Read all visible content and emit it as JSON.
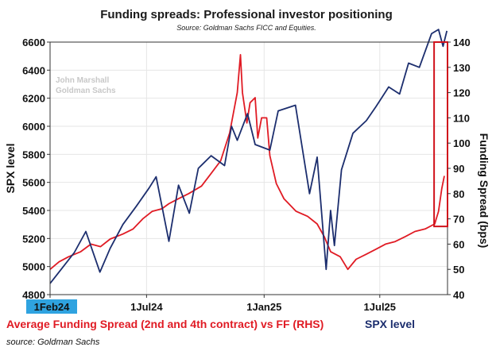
{
  "chart_data": {
    "type": "line",
    "title": "Funding spreads: Professional investor positioning",
    "subtitle": "Source: Goldman Sachs FICC and Equities.",
    "watermark": [
      "John Marshall",
      "Goldman Sachs"
    ],
    "ylabel_left": "SPX level",
    "ylabel_right": "Funding Spread (bps)",
    "ylim_left": [
      4800,
      6600
    ],
    "ylim_right": [
      40,
      140
    ],
    "yticks_left": [
      4800,
      5000,
      5200,
      5400,
      5600,
      5800,
      6000,
      6200,
      6400,
      6600
    ],
    "yticks_right": [
      40,
      50,
      60,
      70,
      80,
      90,
      100,
      110,
      120,
      130,
      140
    ],
    "xlim": [
      "2024-02-01",
      "2025-10-15"
    ],
    "xticks": [
      {
        "label": "1Feb24",
        "date": "2024-02-01",
        "highlight": true
      },
      {
        "label": "1Jul24",
        "date": "2024-07-01"
      },
      {
        "label": "1Jan25",
        "date": "2025-01-01"
      },
      {
        "label": "1Jul25",
        "date": "2025-07-01"
      }
    ],
    "grid": true,
    "colors": {
      "spx": "#1c2e6e",
      "spread": "#e01b24",
      "grid": "#e6e6e6",
      "highlight_box": "#d0121b",
      "start_label_bg": "#2fa3e0"
    },
    "series": [
      {
        "name": "Average Funding Spread (2nd and 4th contract) vs FF (RHS)",
        "axis": "right",
        "points": [
          [
            "2024-02-01",
            50
          ],
          [
            "2024-02-15",
            53
          ],
          [
            "2024-03-01",
            55
          ],
          [
            "2024-03-20",
            57
          ],
          [
            "2024-04-05",
            60
          ],
          [
            "2024-04-20",
            59
          ],
          [
            "2024-05-05",
            62
          ],
          [
            "2024-05-25",
            64
          ],
          [
            "2024-06-10",
            66
          ],
          [
            "2024-06-25",
            70
          ],
          [
            "2024-07-10",
            73
          ],
          [
            "2024-07-25",
            74
          ],
          [
            "2024-08-05",
            76
          ],
          [
            "2024-08-20",
            78
          ],
          [
            "2024-09-05",
            80
          ],
          [
            "2024-09-25",
            83
          ],
          [
            "2024-10-10",
            88
          ],
          [
            "2024-10-25",
            93
          ],
          [
            "2024-11-08",
            104
          ],
          [
            "2024-11-20",
            120
          ],
          [
            "2024-11-25",
            135
          ],
          [
            "2024-11-28",
            120
          ],
          [
            "2024-12-05",
            108
          ],
          [
            "2024-12-10",
            116
          ],
          [
            "2024-12-18",
            118
          ],
          [
            "2024-12-22",
            102
          ],
          [
            "2024-12-28",
            110
          ],
          [
            "2025-01-05",
            110
          ],
          [
            "2025-01-10",
            95
          ],
          [
            "2025-01-20",
            84
          ],
          [
            "2025-02-01",
            78
          ],
          [
            "2025-02-20",
            73
          ],
          [
            "2025-03-10",
            71
          ],
          [
            "2025-03-25",
            68
          ],
          [
            "2025-04-05",
            63
          ],
          [
            "2025-04-15",
            57
          ],
          [
            "2025-04-30",
            55
          ],
          [
            "2025-05-12",
            50
          ],
          [
            "2025-05-25",
            54
          ],
          [
            "2025-06-10",
            56
          ],
          [
            "2025-06-25",
            58
          ],
          [
            "2025-07-10",
            60
          ],
          [
            "2025-07-25",
            61
          ],
          [
            "2025-08-10",
            63
          ],
          [
            "2025-08-25",
            65
          ],
          [
            "2025-09-10",
            66
          ],
          [
            "2025-09-25",
            68
          ],
          [
            "2025-10-01",
            73
          ],
          [
            "2025-10-06",
            82
          ],
          [
            "2025-10-10",
            87
          ]
        ]
      },
      {
        "name": "SPX level",
        "axis": "left",
        "points": [
          [
            "2024-02-01",
            4880
          ],
          [
            "2024-02-20",
            4990
          ],
          [
            "2024-03-10",
            5100
          ],
          [
            "2024-03-28",
            5250
          ],
          [
            "2024-04-19",
            4960
          ],
          [
            "2024-05-05",
            5130
          ],
          [
            "2024-05-25",
            5300
          ],
          [
            "2024-06-15",
            5430
          ],
          [
            "2024-07-05",
            5560
          ],
          [
            "2024-07-16",
            5640
          ],
          [
            "2024-08-05",
            5180
          ],
          [
            "2024-08-20",
            5580
          ],
          [
            "2024-09-06",
            5380
          ],
          [
            "2024-09-20",
            5700
          ],
          [
            "2024-10-10",
            5790
          ],
          [
            "2024-10-31",
            5720
          ],
          [
            "2024-11-11",
            6000
          ],
          [
            "2024-11-20",
            5900
          ],
          [
            "2024-12-06",
            6090
          ],
          [
            "2024-12-18",
            5870
          ],
          [
            "2025-01-10",
            5830
          ],
          [
            "2025-01-23",
            6110
          ],
          [
            "2025-02-19",
            6150
          ],
          [
            "2025-03-13",
            5520
          ],
          [
            "2025-03-25",
            5780
          ],
          [
            "2025-04-08",
            4980
          ],
          [
            "2025-04-15",
            5400
          ],
          [
            "2025-04-21",
            5150
          ],
          [
            "2025-05-02",
            5690
          ],
          [
            "2025-05-20",
            5950
          ],
          [
            "2025-06-10",
            6040
          ],
          [
            "2025-06-25",
            6140
          ],
          [
            "2025-07-15",
            6280
          ],
          [
            "2025-08-01",
            6230
          ],
          [
            "2025-08-15",
            6450
          ],
          [
            "2025-09-01",
            6420
          ],
          [
            "2025-09-20",
            6660
          ],
          [
            "2025-10-01",
            6690
          ],
          [
            "2025-10-08",
            6570
          ],
          [
            "2025-10-14",
            6680
          ]
        ]
      }
    ],
    "annotation": {
      "type": "box",
      "x_range": [
        "2025-09-24",
        "2025-10-15"
      ],
      "y_range_right": [
        67,
        140
      ]
    }
  },
  "legend": {
    "red": "Average Funding Spread (2nd and 4th contract) vs FF (RHS)",
    "blue": "SPX level"
  },
  "footer": {
    "source": "source: Goldman Sachs"
  }
}
